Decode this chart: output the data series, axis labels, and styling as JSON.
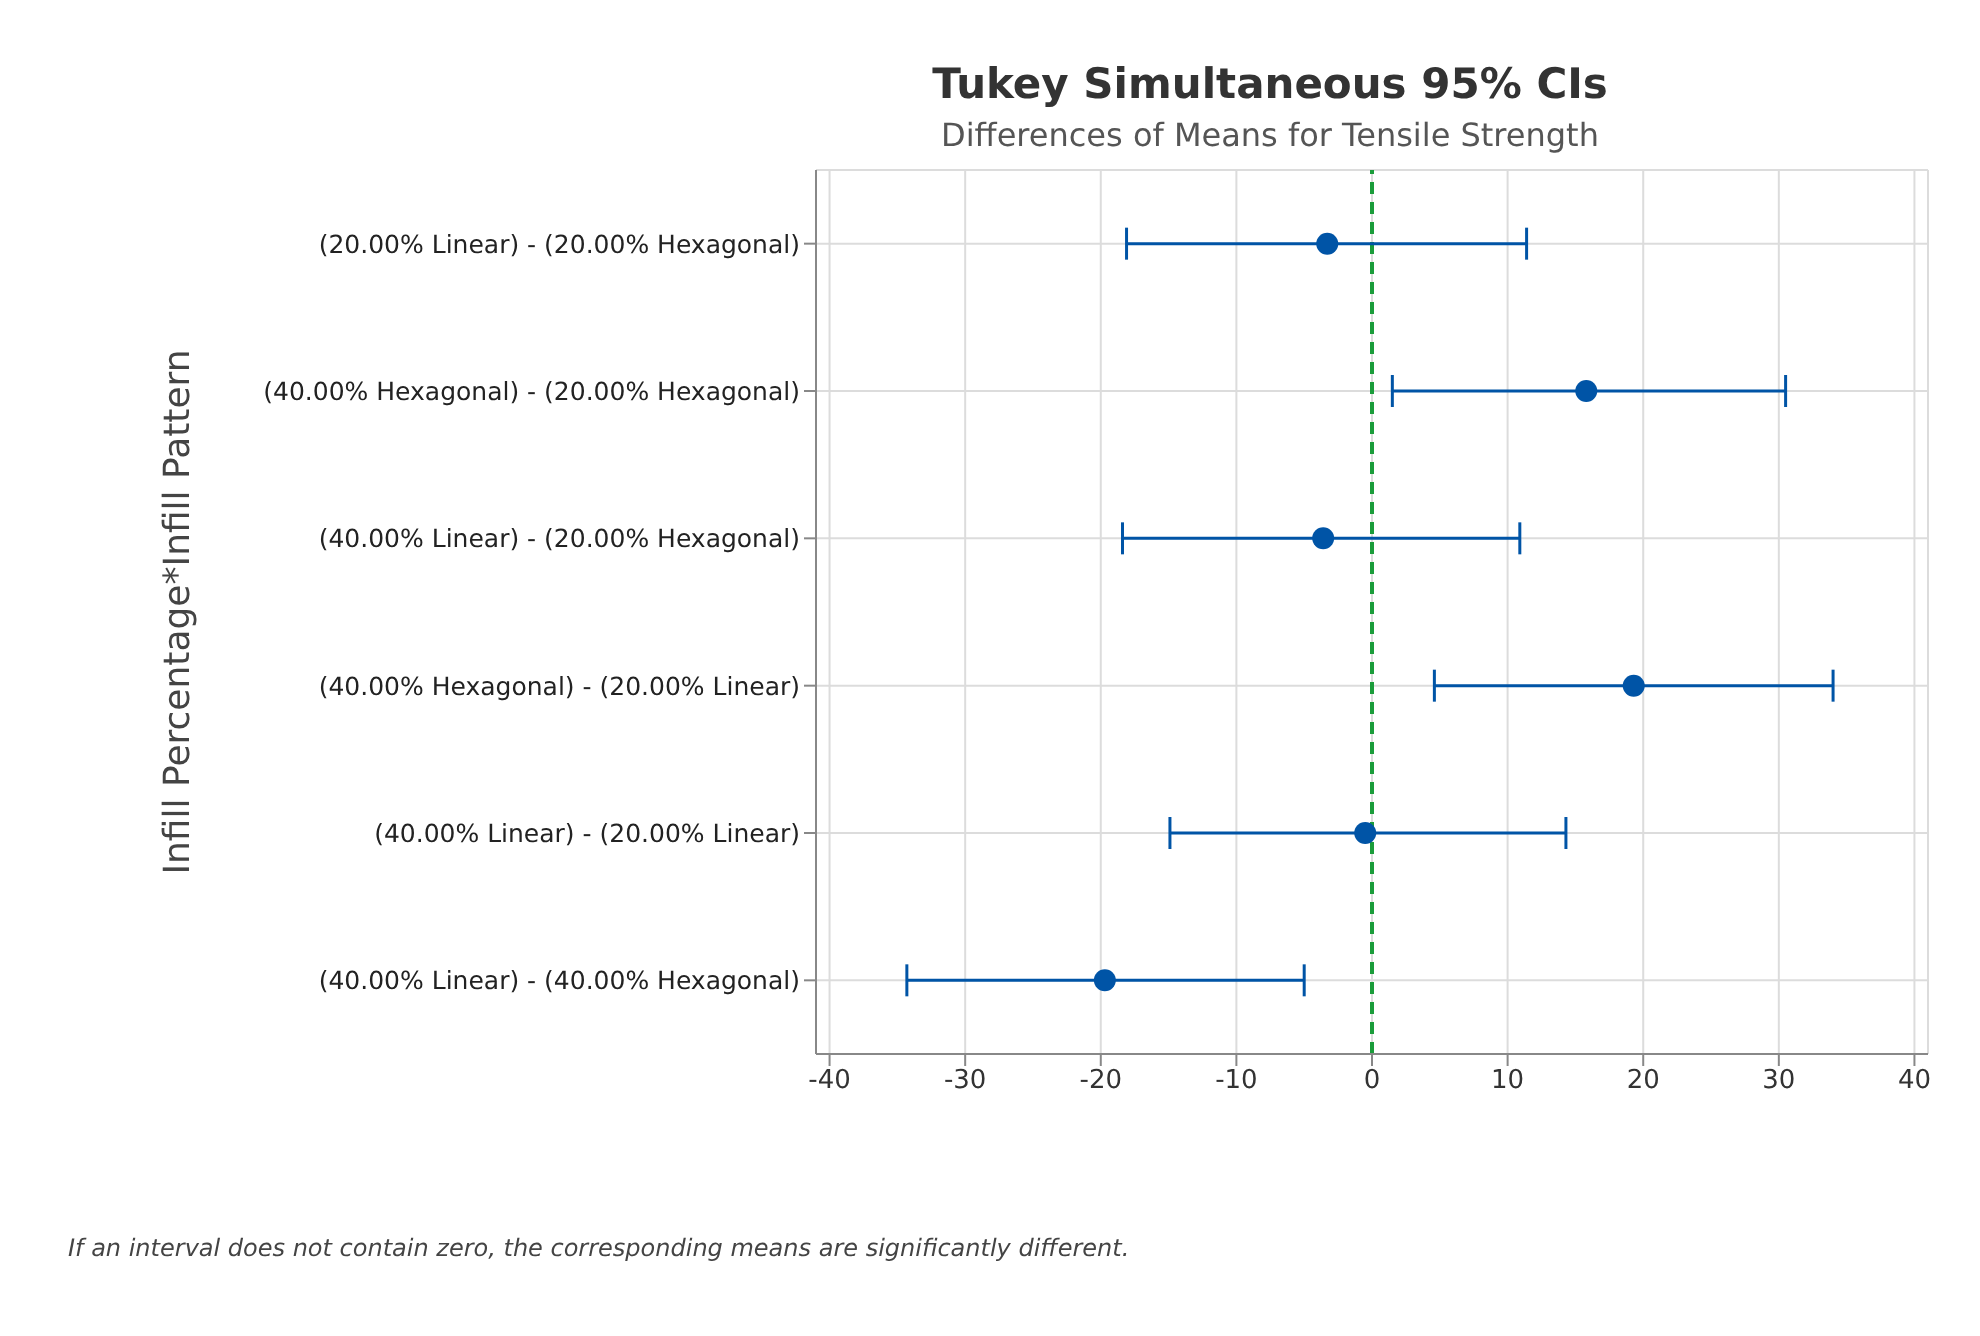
{
  "chart_data": {
    "type": "scatter",
    "title": "Tukey Simultaneous 95% CIs",
    "subtitle": "Differences of Means for Tensile Strength",
    "ylabel": "Infill Percentage*Infill Pattern",
    "categories": [
      "(20.00% Linear) - (20.00% Hexagonal)",
      "(40.00% Hexagonal) - (20.00% Hexagonal)",
      "(40.00% Linear) - (20.00% Hexagonal)",
      "(40.00% Hexagonal) - (20.00% Linear)",
      "(40.00% Linear) - (20.00% Linear)",
      "(40.00% Linear) - (40.00% Hexagonal)"
    ],
    "orientation": "horizontal",
    "values": [
      -3.3,
      15.8,
      -3.6,
      19.3,
      -0.5,
      -19.7
    ],
    "errors": [
      [
        -18.1,
        11.4
      ],
      [
        1.5,
        30.5
      ],
      [
        -18.4,
        10.9
      ],
      [
        4.6,
        34.0
      ],
      [
        -14.9,
        14.3
      ],
      [
        -34.3,
        -5.0
      ]
    ],
    "color": "#0054a6",
    "marker": "circle",
    "xlim": [
      -41,
      41
    ],
    "xticks": [
      -40,
      -30,
      -20,
      -10,
      0,
      10,
      20,
      30,
      40
    ],
    "grid": true,
    "ref_lines": [
      {
        "axis": "x",
        "value": 0,
        "color": "#1a9c3a",
        "line_style": "dashed"
      }
    ],
    "annotations": [
      "If an interval does not contain zero, the corresponding means are significantly different."
    ]
  }
}
